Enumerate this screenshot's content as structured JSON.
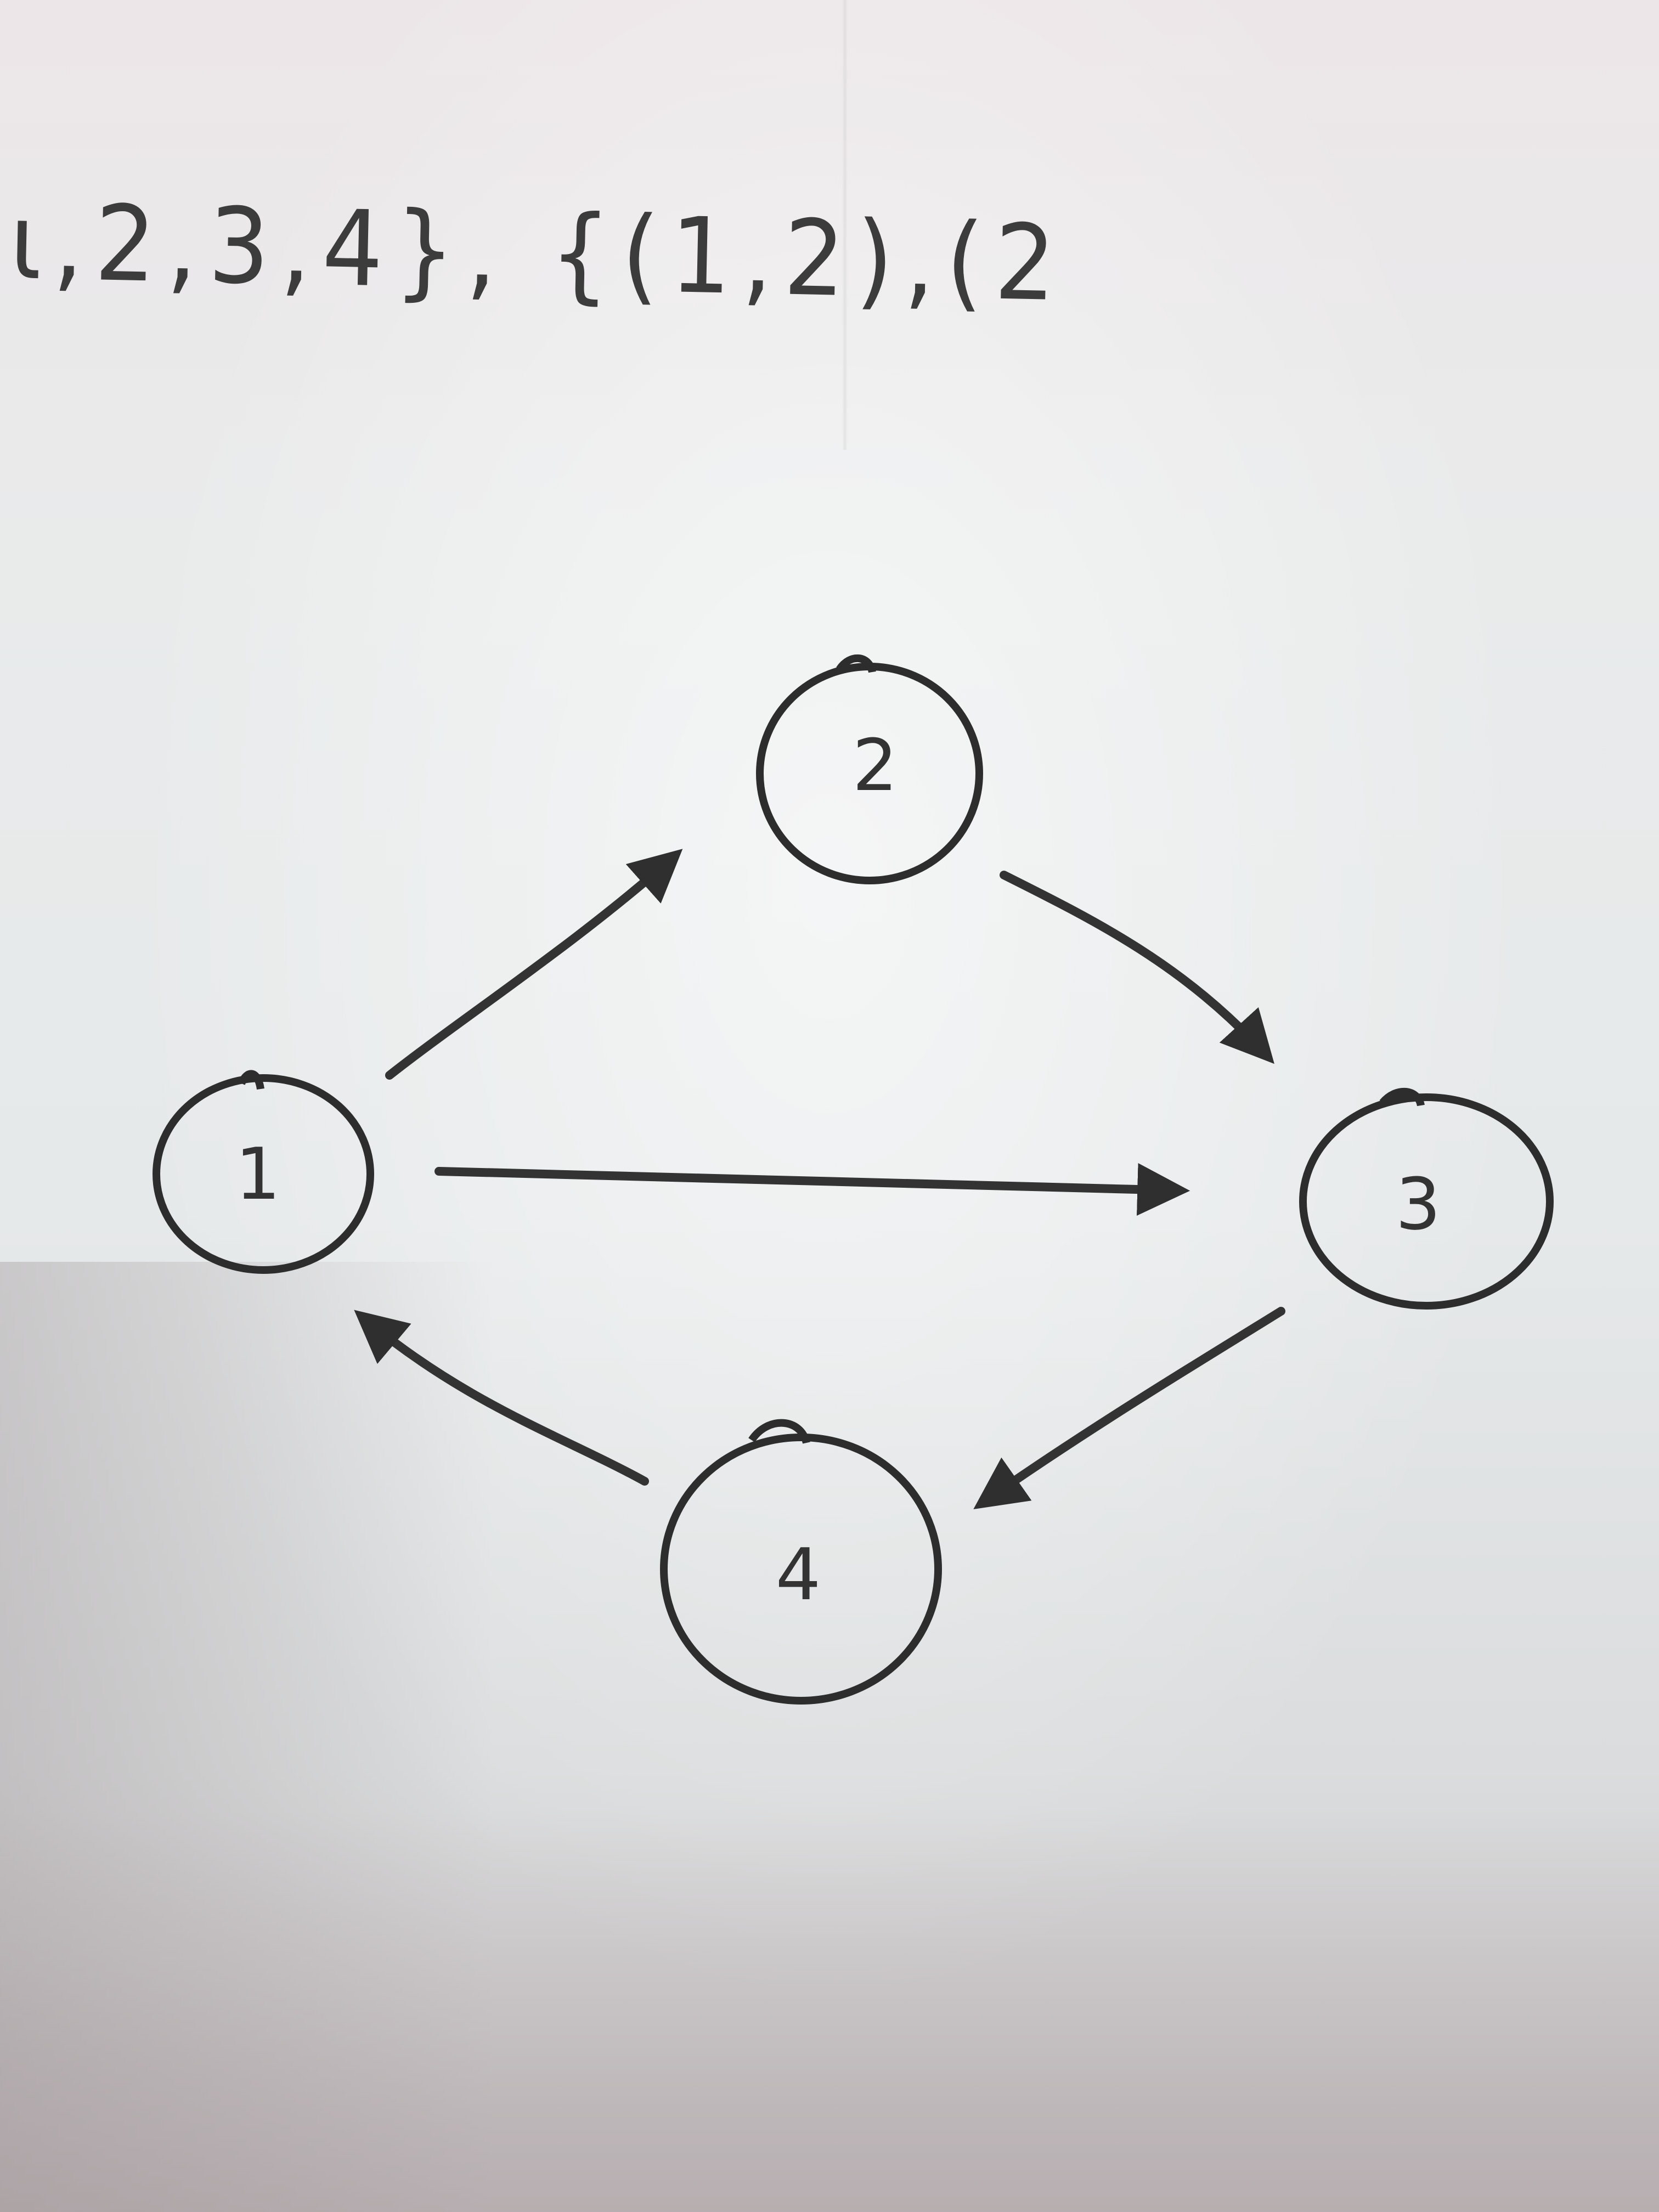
{
  "top_text": "ι,2,3,4}, {(1,2),(2",
  "graph": {
    "nodes": [
      {
        "id": "1",
        "label": "1"
      },
      {
        "id": "2",
        "label": "2"
      },
      {
        "id": "3",
        "label": "3"
      },
      {
        "id": "4",
        "label": "4"
      }
    ],
    "edges": [
      {
        "from": "1",
        "to": "2"
      },
      {
        "from": "2",
        "to": "3"
      },
      {
        "from": "1",
        "to": "3"
      },
      {
        "from": "3",
        "to": "4"
      },
      {
        "from": "4",
        "to": "1"
      }
    ],
    "ink_color": "#333333"
  }
}
